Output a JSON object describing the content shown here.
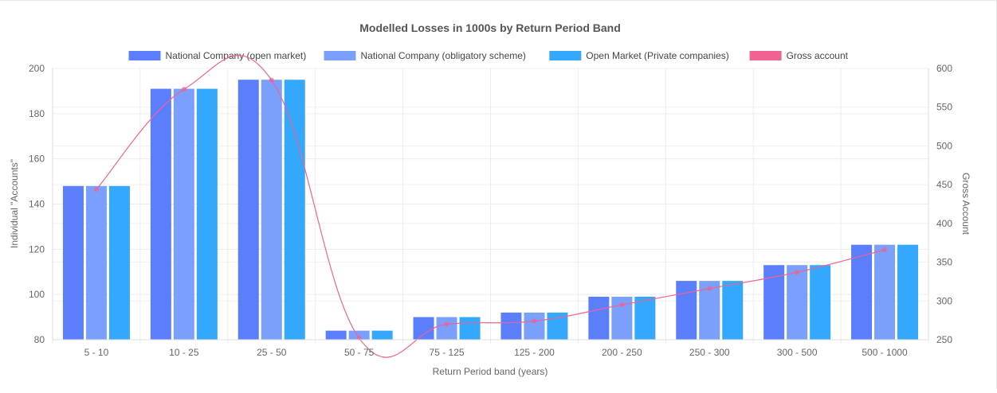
{
  "chart_data": {
    "type": "bar",
    "title": "Modelled Losses in 1000s by Return Period Band",
    "xlabel": "Return Period band (years)",
    "ylabel": "Individual \"Accounts\"",
    "y2label": "Gross Account",
    "ylim": [
      80,
      200
    ],
    "y2lim": [
      250,
      600
    ],
    "yticks": [
      80,
      100,
      120,
      140,
      160,
      180,
      200
    ],
    "y2ticks": [
      250,
      300,
      350,
      400,
      450,
      500,
      550,
      600
    ],
    "legend_position": "top-center",
    "grid": true,
    "categories": [
      "5 - 10",
      "10 - 25",
      "25 - 50",
      "50 - 75",
      "75 - 125",
      "125 - 200",
      "200 - 250",
      "250 - 300",
      "300 - 500",
      "500 - 1000"
    ],
    "series": [
      {
        "name": "National Company (open market)",
        "type": "bar",
        "axis": "left",
        "color": "#5b7ffc",
        "values": [
          148,
          191,
          195,
          84,
          90,
          92,
          99,
          106,
          113,
          122
        ]
      },
      {
        "name": "National Company (obligatory scheme)",
        "type": "bar",
        "axis": "left",
        "color": "#7ba0fc",
        "values": [
          148,
          191,
          195,
          84,
          90,
          92,
          99,
          106,
          113,
          122
        ]
      },
      {
        "name": "Open Market (Private companies)",
        "type": "bar",
        "axis": "left",
        "color": "#33a8fc",
        "values": [
          148,
          191,
          195,
          84,
          90,
          92,
          99,
          106,
          113,
          122
        ]
      },
      {
        "name": "Gross account",
        "type": "line",
        "axis": "right",
        "color": "#f06292",
        "values": [
          444,
          573,
          585,
          252,
          270,
          274,
          295,
          316,
          337,
          366
        ]
      }
    ]
  }
}
